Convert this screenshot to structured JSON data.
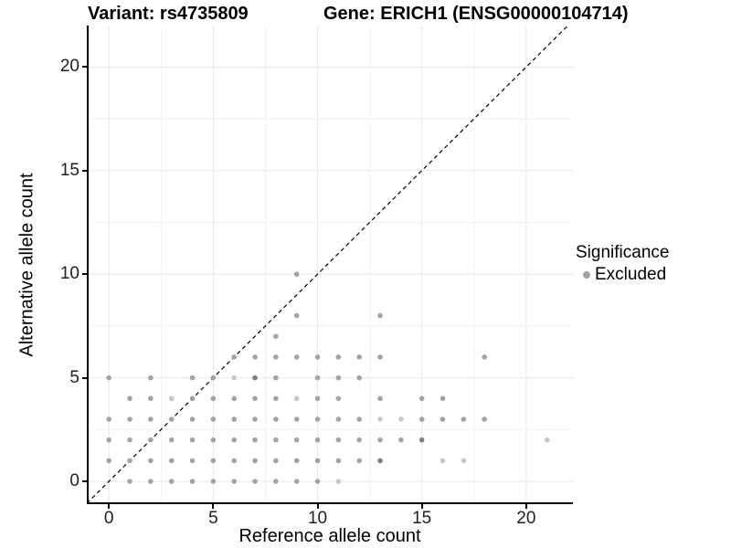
{
  "header": {
    "variant_title": "Variant: rs4735809",
    "gene_title": "Gene: ERICH1 (ENSG00000104714)"
  },
  "axes": {
    "x_label": "Reference allele count",
    "y_label": "Alternative allele count"
  },
  "legend": {
    "title": "Significance",
    "items": [
      {
        "label": "Excluded",
        "color": "#a3a3a3"
      }
    ]
  },
  "chart_data": {
    "type": "scatter",
    "xlabel": "Reference allele count",
    "ylabel": "Alternative allele count",
    "xlim": [
      -1.06,
      22.24
    ],
    "ylim": [
      -1.1,
      22.0
    ],
    "x_ticks": [
      0,
      5,
      10,
      15,
      20
    ],
    "y_ticks": [
      0,
      5,
      10,
      15,
      20
    ],
    "x_minor": [
      2.5,
      7.5,
      12.5,
      17.5
    ],
    "y_minor": [
      2.5,
      7.5,
      12.5,
      17.5
    ],
    "grid": {
      "major_color": "#e7e7e7",
      "minor_color": "#f2f2f2"
    },
    "identity_line": {
      "slope": 1,
      "intercept": 0,
      "style": "dashed",
      "color": "#000000"
    },
    "legend_position": "right",
    "point_radius": 2.8,
    "point_colors": {
      "normal": "#a3a3a3",
      "light": "#c7c7c7",
      "dark": "#7f7f7f"
    },
    "series": [
      {
        "name": "Excluded",
        "points": [
          [
            1,
            0
          ],
          [
            2,
            0
          ],
          [
            3,
            0
          ],
          [
            4,
            0
          ],
          [
            5,
            0
          ],
          [
            6,
            0
          ],
          [
            7,
            0
          ],
          [
            8,
            0
          ],
          [
            9,
            0
          ],
          [
            10,
            0
          ],
          [
            11,
            0,
            1
          ],
          [
            0,
            1
          ],
          [
            1,
            1
          ],
          [
            2,
            1
          ],
          [
            3,
            1
          ],
          [
            4,
            1
          ],
          [
            5,
            1
          ],
          [
            6,
            1
          ],
          [
            7,
            1
          ],
          [
            8,
            1
          ],
          [
            9,
            1
          ],
          [
            10,
            1
          ],
          [
            11,
            1
          ],
          [
            12,
            1
          ],
          [
            13,
            1,
            2
          ],
          [
            16,
            1,
            1
          ],
          [
            17,
            1,
            1
          ],
          [
            0,
            2
          ],
          [
            1,
            2
          ],
          [
            2,
            2
          ],
          [
            3,
            2
          ],
          [
            4,
            2
          ],
          [
            5,
            2
          ],
          [
            6,
            2
          ],
          [
            7,
            2
          ],
          [
            8,
            2
          ],
          [
            9,
            2
          ],
          [
            10,
            2
          ],
          [
            11,
            2
          ],
          [
            12,
            2
          ],
          [
            13,
            2
          ],
          [
            14,
            2
          ],
          [
            15,
            2,
            2
          ],
          [
            21,
            2,
            1
          ],
          [
            0,
            3
          ],
          [
            1,
            3
          ],
          [
            2,
            3
          ],
          [
            3,
            3
          ],
          [
            4,
            3
          ],
          [
            5,
            3
          ],
          [
            6,
            3
          ],
          [
            7,
            3
          ],
          [
            8,
            3
          ],
          [
            9,
            3
          ],
          [
            10,
            3
          ],
          [
            11,
            3
          ],
          [
            12,
            3
          ],
          [
            13,
            3,
            1
          ],
          [
            14,
            3,
            1
          ],
          [
            15,
            3
          ],
          [
            16,
            3
          ],
          [
            17,
            3
          ],
          [
            18,
            3
          ],
          [
            1,
            4
          ],
          [
            2,
            4
          ],
          [
            3,
            4,
            1
          ],
          [
            4,
            4
          ],
          [
            5,
            4
          ],
          [
            6,
            4
          ],
          [
            7,
            4
          ],
          [
            8,
            4
          ],
          [
            9,
            4,
            1
          ],
          [
            10,
            4
          ],
          [
            11,
            4
          ],
          [
            13,
            4
          ],
          [
            15,
            4
          ],
          [
            16,
            4
          ],
          [
            0,
            5
          ],
          [
            2,
            5
          ],
          [
            4,
            5
          ],
          [
            5,
            5
          ],
          [
            6,
            5,
            1
          ],
          [
            7,
            5,
            2
          ],
          [
            8,
            5
          ],
          [
            10,
            5
          ],
          [
            11,
            5
          ],
          [
            12,
            5
          ],
          [
            6,
            6
          ],
          [
            7,
            6
          ],
          [
            8,
            6
          ],
          [
            9,
            6
          ],
          [
            10,
            6
          ],
          [
            11,
            6
          ],
          [
            12,
            6
          ],
          [
            13,
            6
          ],
          [
            18,
            6
          ],
          [
            8,
            7
          ],
          [
            9,
            8
          ],
          [
            13,
            8
          ],
          [
            9,
            10
          ]
        ]
      }
    ]
  }
}
